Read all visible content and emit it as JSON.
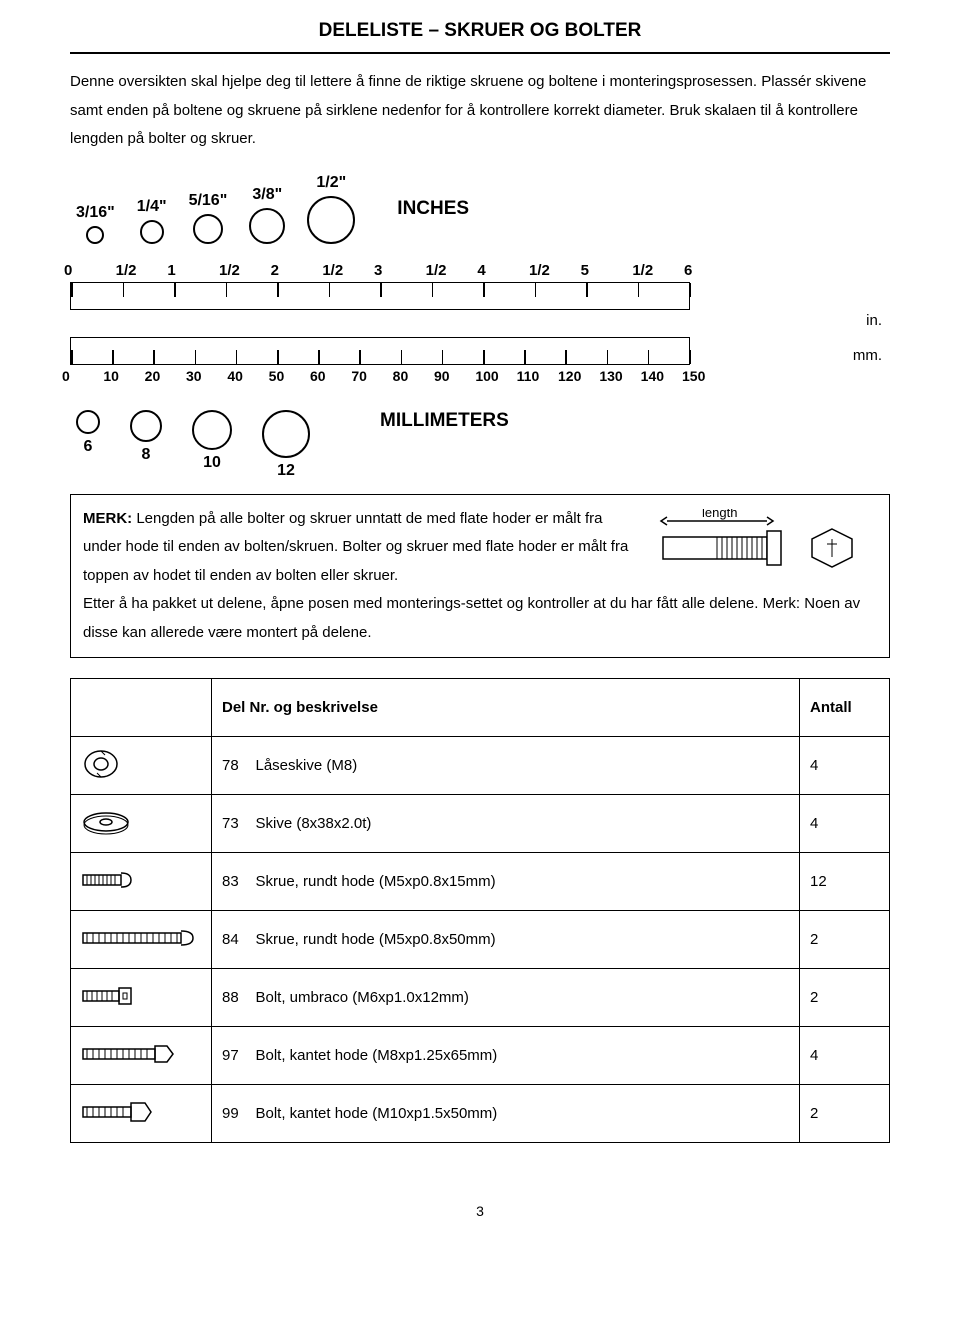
{
  "title": "DELELISTE – SKRUER OG BOLTER",
  "intro": "Denne oversikten skal hjelpe deg til lettere å finne de riktige skruene og boltene i monteringsprosessen. Plassér skivene samt enden på boltene og skruene på sirklene nedenfor for å kontrollere korrekt diameter. Bruk skalaen til å kontrollere lengden på bolter og skruer.",
  "inches": {
    "label": "INCHES",
    "circles": [
      {
        "label": "3/16\"",
        "d": 18
      },
      {
        "label": "1/4\"",
        "d": 24
      },
      {
        "label": "5/16\"",
        "d": 30
      },
      {
        "label": "3/8\"",
        "d": 36
      },
      {
        "label": "1/2\"",
        "d": 48
      }
    ]
  },
  "ruler_in": {
    "ticks": [
      "0",
      "1/2",
      "1",
      "1/2",
      "2",
      "1/2",
      "3",
      "1/2",
      "4",
      "1/2",
      "5",
      "1/2",
      "6"
    ],
    "unit": "in."
  },
  "ruler_mm": {
    "ticks": [
      "0",
      "10",
      "20",
      "30",
      "40",
      "50",
      "60",
      "70",
      "80",
      "90",
      "100",
      "110",
      "120",
      "130",
      "140",
      "150"
    ],
    "unit": "mm."
  },
  "mm": {
    "label": "MILLIMETERS",
    "circles": [
      {
        "label": "6",
        "d": 24
      },
      {
        "label": "8",
        "d": 32
      },
      {
        "label": "10",
        "d": 40
      },
      {
        "label": "12",
        "d": 48
      }
    ]
  },
  "note": {
    "merk_label": "MERK:",
    "p1": " Lengden på alle bolter og skruer unntatt de med flate hoder er målt fra under hode til enden av bolten/skruen. Bolter og skruer med flate hoder er målt fra toppen av hodet til enden av bolten eller skruer.",
    "p2": "Etter å ha pakket ut delene, åpne posen med monterings-settet og kontroller at du har fått alle delene. Merk: Noen av disse kan allerede være montert på delene.",
    "length_label": "length"
  },
  "table": {
    "header_desc": "Del Nr. og beskrivelse",
    "header_qty": "Antall",
    "rows": [
      {
        "num": "78",
        "desc": "Låseskive (M8)",
        "qty": "4",
        "icon": "lockwasher"
      },
      {
        "num": "73",
        "desc": "Skive (8x38x2.0t)",
        "qty": "4",
        "icon": "washer"
      },
      {
        "num": "83",
        "desc": "Skrue, rundt hode (M5xp0.8x15mm)",
        "qty": "12",
        "icon": "screw-short"
      },
      {
        "num": "84",
        "desc": "Skrue, rundt hode (M5xp0.8x50mm)",
        "qty": "2",
        "icon": "screw-long"
      },
      {
        "num": "88",
        "desc": "Bolt, umbraco (M6xp1.0x12mm)",
        "qty": "2",
        "icon": "allen"
      },
      {
        "num": "97",
        "desc": "Bolt, kantet hode (M8xp1.25x65mm)",
        "qty": "4",
        "icon": "hexbolt-long"
      },
      {
        "num": "99",
        "desc": "Bolt, kantet hode (M10xp1.5x50mm)",
        "qty": "2",
        "icon": "hexbolt-short"
      }
    ]
  },
  "page_num": "3",
  "colors": {
    "text": "#000000",
    "bg": "#ffffff",
    "border": "#000000"
  }
}
